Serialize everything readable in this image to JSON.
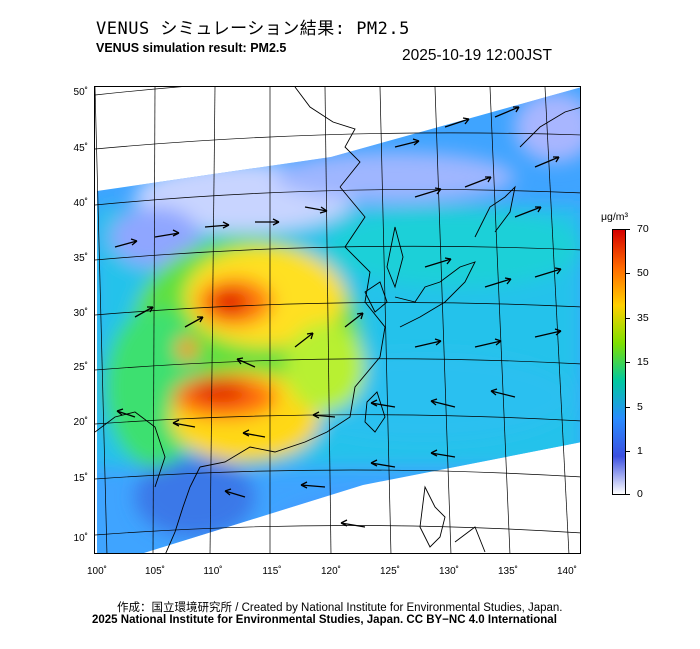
{
  "header": {
    "title_jp": "VENUS シミュレーション結果: PM2.5",
    "title_en": "VENUS simulation result: PM2.5",
    "timestamp": "2025-10-19 12:00JST"
  },
  "map": {
    "projection": "lambert-conformal",
    "lat_labels": [
      "50˚",
      "45˚",
      "40˚",
      "35˚",
      "30˚",
      "25˚",
      "20˚",
      "15˚",
      "10˚"
    ],
    "lon_labels": [
      "100˚",
      "105˚",
      "110˚",
      "115˚",
      "120˚",
      "125˚",
      "130˚",
      "135˚",
      "140˚"
    ],
    "layers": [
      "pm2.5-concentration-field",
      "wind-vector-arrows",
      "coastlines",
      "graticule"
    ]
  },
  "legend": {
    "unit": "μg/m³",
    "ticks": [
      "70",
      "50",
      "35",
      "15",
      "5",
      "1",
      "0"
    ],
    "colors": [
      "#d40000",
      "#ff6a00",
      "#ffd000",
      "#7ee000",
      "#00c8a0",
      "#2a8cff",
      "#3c50e0",
      "#ffffff"
    ]
  },
  "footer": {
    "credit_line": "作成：国立環境研究所 / Created by National Institute for Environmental Studies, Japan.",
    "license_line": "2025 National Institute for Environmental Studies, Japan. CC BY−NC 4.0 International"
  }
}
